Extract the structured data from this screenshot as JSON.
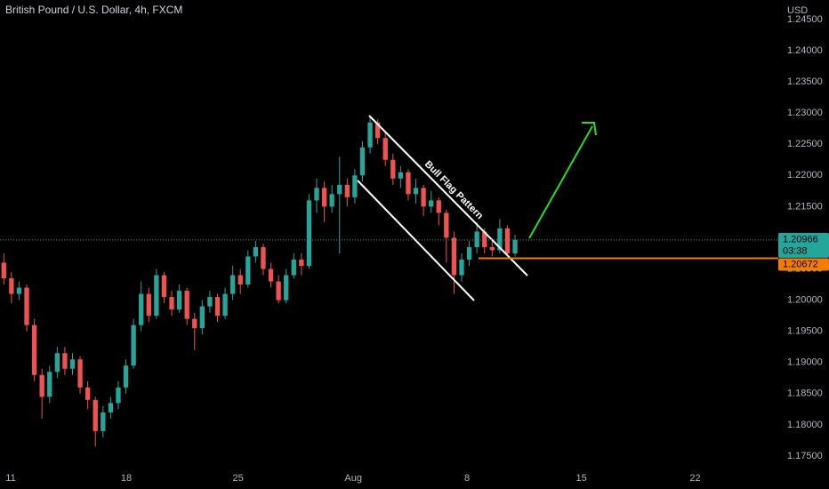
{
  "chart_data": {
    "type": "candlestick",
    "title": "British Pound / U.S. Dollar, 4h, FXCM",
    "currency": "USD",
    "annotation": "Bull Flag Pattern",
    "up_color": "#26a69a",
    "down_color": "#ef5350",
    "open": [
      1.206,
      1.2035,
      1.201,
      1.202,
      1.196,
      1.188,
      1.1845,
      1.1885,
      1.1915,
      1.189,
      1.1905,
      1.186,
      1.184,
      1.179,
      1.182,
      1.1835,
      1.186,
      1.1895,
      1.196,
      1.201,
      1.1975,
      1.204,
      1.2005,
      1.1985,
      1.2015,
      1.197,
      1.1955,
      1.199,
      1.2005,
      1.1975,
      1.201,
      1.204,
      1.2025,
      1.207,
      1.2085,
      1.205,
      1.203,
      1.2,
      1.204,
      1.2065,
      1.2055,
      1.216,
      1.218,
      1.215,
      1.217,
      1.2185,
      1.2165,
      1.22,
      1.2245,
      1.2285,
      1.226,
      1.2225,
      1.2195,
      1.2205,
      1.217,
      1.218,
      1.215,
      1.216,
      1.214,
      1.21,
      1.204,
      1.2065,
      1.2085,
      1.211,
      1.2085,
      1.208,
      1.2115,
      1.2075
    ],
    "high": [
      1.2075,
      1.2045,
      1.203,
      1.2025,
      1.197,
      1.189,
      1.1895,
      1.1925,
      1.1925,
      1.1915,
      1.191,
      1.187,
      1.1845,
      1.183,
      1.1845,
      1.187,
      1.1905,
      1.197,
      1.203,
      1.202,
      1.205,
      1.2045,
      1.2015,
      1.2025,
      1.202,
      1.198,
      1.2,
      1.2015,
      1.201,
      1.202,
      1.2055,
      1.205,
      1.208,
      1.2095,
      1.209,
      1.206,
      1.204,
      1.205,
      1.2075,
      1.2075,
      1.217,
      1.2195,
      1.219,
      1.2185,
      1.223,
      1.2195,
      1.221,
      1.2255,
      1.2295,
      1.229,
      1.227,
      1.2235,
      1.2215,
      1.221,
      1.2195,
      1.2185,
      1.2175,
      1.2165,
      1.2145,
      1.211,
      1.2075,
      1.2095,
      1.2125,
      1.2115,
      1.2095,
      1.213,
      1.212,
      1.2105
    ],
    "low": [
      1.2025,
      1.1995,
      1.2,
      1.195,
      1.187,
      1.181,
      1.1835,
      1.1875,
      1.188,
      1.188,
      1.185,
      1.1825,
      1.1765,
      1.178,
      1.181,
      1.1825,
      1.185,
      1.189,
      1.195,
      1.1965,
      1.197,
      1.1995,
      1.1975,
      1.198,
      1.196,
      1.192,
      1.1945,
      1.198,
      1.1965,
      1.197,
      1.2,
      1.201,
      1.202,
      1.206,
      1.204,
      1.202,
      1.1995,
      1.1995,
      1.2035,
      1.204,
      1.205,
      1.214,
      1.2125,
      1.214,
      1.2075,
      1.215,
      1.2155,
      1.219,
      1.2235,
      1.225,
      1.2215,
      1.2185,
      1.218,
      1.216,
      1.2155,
      1.2135,
      1.214,
      1.212,
      1.206,
      1.201,
      1.203,
      1.2055,
      1.2075,
      1.2075,
      1.207,
      1.2075,
      1.207,
      1.207
    ],
    "close": [
      1.2035,
      1.201,
      1.202,
      1.196,
      1.188,
      1.1845,
      1.1885,
      1.1915,
      1.189,
      1.1905,
      1.186,
      1.184,
      1.179,
      1.182,
      1.1835,
      1.186,
      1.1895,
      1.196,
      1.201,
      1.1975,
      1.204,
      1.2005,
      1.1985,
      1.2015,
      1.197,
      1.1955,
      1.199,
      1.2005,
      1.1975,
      1.201,
      1.204,
      1.2025,
      1.207,
      1.2085,
      1.205,
      1.203,
      1.2,
      1.204,
      1.2065,
      1.2055,
      1.216,
      1.218,
      1.215,
      1.217,
      1.2185,
      1.2165,
      1.22,
      1.2245,
      1.2285,
      1.226,
      1.2225,
      1.2195,
      1.2205,
      1.217,
      1.218,
      1.215,
      1.216,
      1.214,
      1.21,
      1.204,
      1.2065,
      1.2085,
      1.211,
      1.2085,
      1.208,
      1.2115,
      1.2075,
      1.20966
    ],
    "xlim": [
      0,
      102
    ],
    "xticks": [
      {
        "value": 1.4,
        "label": "11"
      },
      {
        "value": 16.55,
        "label": "18"
      },
      {
        "value": 31.2,
        "label": "25"
      },
      {
        "value": 46.3,
        "label": "Aug"
      },
      {
        "value": 61.2,
        "label": "8"
      },
      {
        "value": 76.2,
        "label": "15"
      },
      {
        "value": 91.1,
        "label": "22"
      }
    ],
    "ylim": [
      1.17328,
      1.24813
    ],
    "yticks": [
      {
        "value": 1.175,
        "label": "1.17500"
      },
      {
        "value": 1.18,
        "label": "1.18000"
      },
      {
        "value": 1.185,
        "label": "1.18500"
      },
      {
        "value": 1.19,
        "label": "1.19000"
      },
      {
        "value": 1.195,
        "label": "1.19500"
      },
      {
        "value": 1.2,
        "label": "1.20000"
      },
      {
        "value": 1.205,
        "label": "1.20500"
      },
      {
        "value": 1.21,
        "label": "1.21000"
      },
      {
        "value": 1.215,
        "label": "1.21500"
      },
      {
        "value": 1.22,
        "label": "1.22000"
      },
      {
        "value": 1.225,
        "label": "1.22500"
      },
      {
        "value": 1.23,
        "label": "1.23000"
      },
      {
        "value": 1.235,
        "label": "1.23500"
      },
      {
        "value": 1.24,
        "label": "1.24000"
      },
      {
        "value": 1.245,
        "label": "1.24500"
      }
    ],
    "last_price": 1.20966,
    "countdown": "03:38",
    "last_color": "#26a69a",
    "support_level": 1.20672,
    "support_color": "#f57c00"
  }
}
